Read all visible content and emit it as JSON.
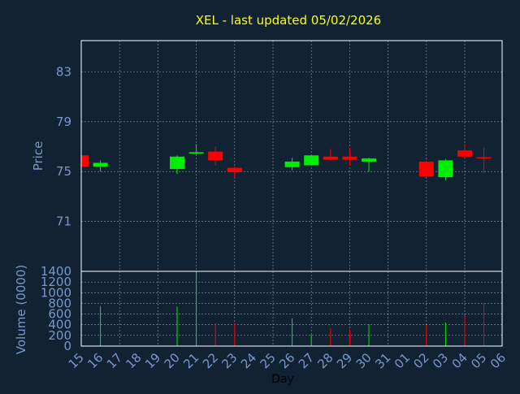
{
  "chart_data": [
    {
      "type": "candlestick",
      "title": "XEL - last updated 05/02/2026",
      "ylabel": "Price",
      "ylim": [
        67,
        85.5
      ],
      "yticks": [
        71,
        75,
        79,
        83
      ],
      "grid": true,
      "colors": {
        "up": "#00ee00",
        "down": "#ff0000"
      },
      "categories": [
        "15",
        "16",
        "17",
        "18",
        "19",
        "20",
        "21",
        "22",
        "23",
        "24",
        "25",
        "26",
        "27",
        "28",
        "29",
        "30",
        "31",
        "01",
        "02",
        "03",
        "04",
        "05",
        "06"
      ],
      "candles": [
        {
          "day": "15",
          "open": 76.3,
          "close": 75.4,
          "high": 76.3,
          "low": 75.4
        },
        {
          "day": "16",
          "open": 75.4,
          "close": 75.7,
          "high": 75.9,
          "low": 75.0
        },
        {
          "day": "20",
          "open": 75.2,
          "close": 76.2,
          "high": 76.3,
          "low": 74.8
        },
        {
          "day": "21",
          "open": 76.45,
          "close": 76.55,
          "high": 77.2,
          "low": 76.4
        },
        {
          "day": "22",
          "open": 76.6,
          "close": 75.9,
          "high": 77.0,
          "low": 75.5
        },
        {
          "day": "23",
          "open": 75.3,
          "close": 74.95,
          "high": 75.4,
          "low": 74.5
        },
        {
          "day": "26",
          "open": 75.35,
          "close": 75.8,
          "high": 76.1,
          "low": 75.1
        },
        {
          "day": "27",
          "open": 75.5,
          "close": 76.3,
          "high": 76.3,
          "low": 75.5
        },
        {
          "day": "28",
          "open": 76.2,
          "close": 75.95,
          "high": 76.8,
          "low": 75.9
        },
        {
          "day": "29",
          "open": 76.2,
          "close": 75.95,
          "high": 76.9,
          "low": 75.5
        },
        {
          "day": "30",
          "open": 75.8,
          "close": 76.05,
          "high": 76.1,
          "low": 75.0
        },
        {
          "day": "02",
          "open": 75.8,
          "close": 74.6,
          "high": 75.9,
          "low": 74.6
        },
        {
          "day": "03",
          "open": 74.55,
          "close": 75.9,
          "high": 76.0,
          "low": 74.3
        },
        {
          "day": "04",
          "open": 76.7,
          "close": 76.2,
          "high": 77.2,
          "low": 76.0
        },
        {
          "day": "05",
          "open": 76.15,
          "close": 76.1,
          "high": 76.9,
          "low": 74.9
        }
      ]
    },
    {
      "type": "bar",
      "xlabel": "Day",
      "ylabel": "Volume (0000)",
      "ylim": [
        0,
        1400
      ],
      "yticks": [
        0,
        200,
        400,
        600,
        800,
        1000,
        1200,
        1400
      ],
      "grid": true,
      "categories": [
        "15",
        "16",
        "17",
        "18",
        "19",
        "20",
        "21",
        "22",
        "23",
        "24",
        "25",
        "26",
        "27",
        "28",
        "29",
        "30",
        "31",
        "01",
        "02",
        "03",
        "04",
        "05",
        "06"
      ],
      "volumes": [
        {
          "day": "16",
          "value": 750,
          "direction": "up"
        },
        {
          "day": "20",
          "value": 740,
          "direction": "up"
        },
        {
          "day": "21",
          "value": 1400,
          "direction": "up"
        },
        {
          "day": "22",
          "value": 430,
          "direction": "down"
        },
        {
          "day": "23",
          "value": 420,
          "direction": "down"
        },
        {
          "day": "26",
          "value": 520,
          "direction": "up"
        },
        {
          "day": "27",
          "value": 210,
          "direction": "up"
        },
        {
          "day": "28",
          "value": 330,
          "direction": "down"
        },
        {
          "day": "29",
          "value": 320,
          "direction": "down"
        },
        {
          "day": "30",
          "value": 410,
          "direction": "up"
        },
        {
          "day": "02",
          "value": 390,
          "direction": "down"
        },
        {
          "day": "03",
          "value": 440,
          "direction": "up"
        },
        {
          "day": "04",
          "value": 580,
          "direction": "down"
        },
        {
          "day": "05",
          "value": 800,
          "direction": "down"
        }
      ]
    }
  ]
}
